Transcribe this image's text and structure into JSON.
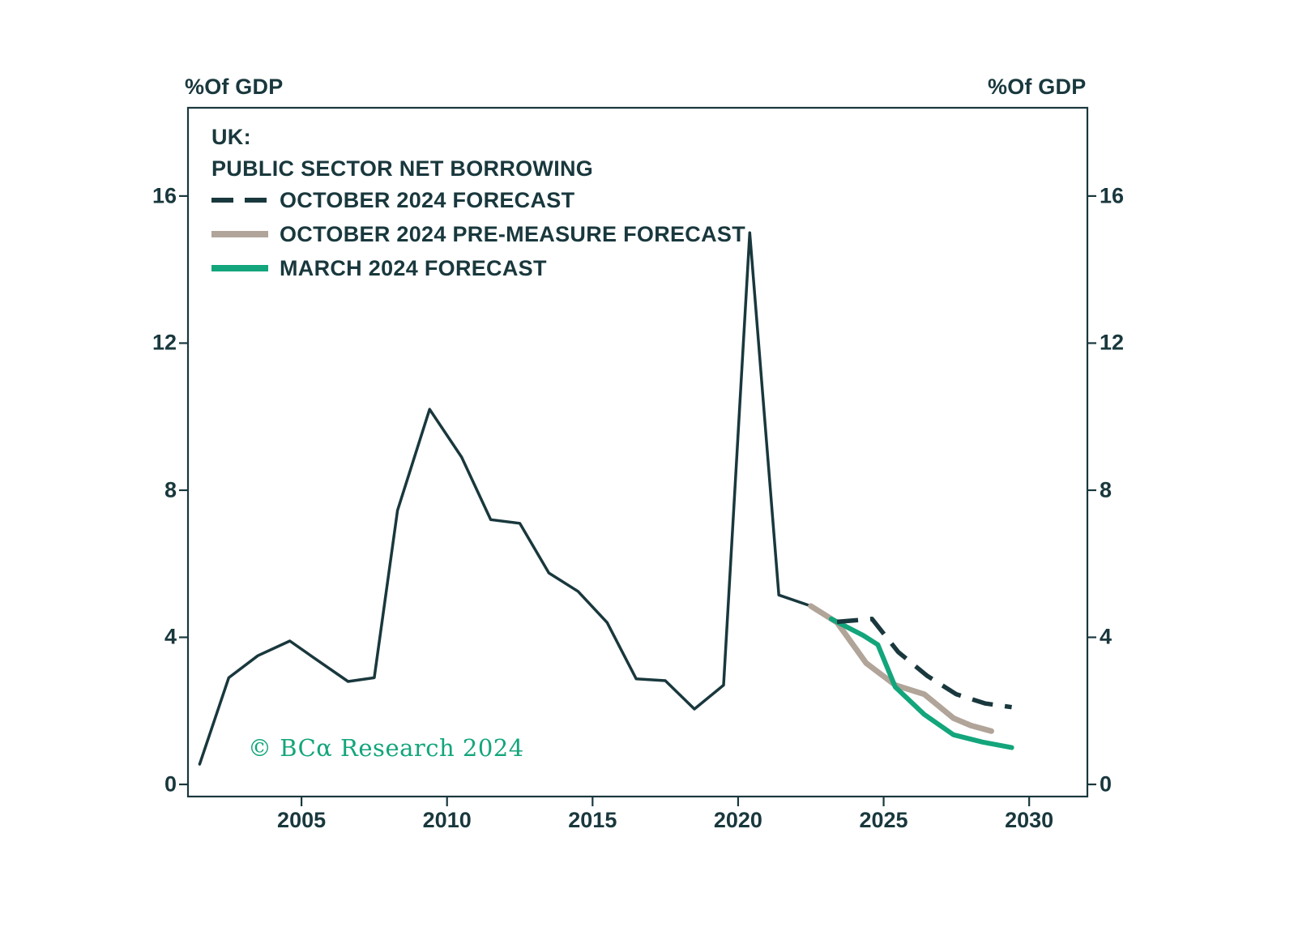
{
  "colors": {
    "ink": "#19383d",
    "green": "#13a57b",
    "tan": "#b1a499",
    "background": "#ffffff"
  },
  "chart_data": {
    "type": "line",
    "title_lines": [
      "UK:",
      "PUBLIC SECTOR NET BORROWING"
    ],
    "y_unit_left": "%Of GDP",
    "y_unit_right": "%Of GDP",
    "x_ticks": [
      2005,
      2010,
      2015,
      2020,
      2025,
      2030
    ],
    "y_ticks": [
      0,
      4,
      8,
      12,
      16
    ],
    "x_range": [
      2001.1,
      2032.0
    ],
    "y_range": [
      -0.33,
      18.4
    ],
    "grid": false,
    "legend_position": "top-left-inside",
    "series": [
      {
        "name": "PUBLIC SECTOR NET BORROWING (HISTORICAL)",
        "color": "#19383d",
        "style": "solid",
        "width": 3.5,
        "points": [
          [
            2001.5,
            0.55
          ],
          [
            2002.5,
            2.9
          ],
          [
            2003.5,
            3.5
          ],
          [
            2004.6,
            3.9
          ],
          [
            2005.5,
            3.4
          ],
          [
            2006.6,
            2.8
          ],
          [
            2007.5,
            2.9
          ],
          [
            2008.3,
            7.45
          ],
          [
            2009.4,
            10.2
          ],
          [
            2010.5,
            8.9
          ],
          [
            2011.5,
            7.2
          ],
          [
            2012.5,
            7.1
          ],
          [
            2013.5,
            5.75
          ],
          [
            2014.5,
            5.25
          ],
          [
            2015.5,
            4.4
          ],
          [
            2016.5,
            2.87
          ],
          [
            2017.5,
            2.82
          ],
          [
            2018.5,
            2.05
          ],
          [
            2019.5,
            2.7
          ],
          [
            2020.4,
            15.0
          ],
          [
            2021.4,
            5.15
          ],
          [
            2022.5,
            4.85
          ]
        ]
      },
      {
        "name": "OCTOBER 2024 PRE-MEASURE FORECAST",
        "color": "#b1a499",
        "style": "solid",
        "width": 7,
        "points": [
          [
            2022.5,
            4.85
          ],
          [
            2023.4,
            4.4
          ],
          [
            2024.4,
            3.3
          ],
          [
            2025.4,
            2.7
          ],
          [
            2026.4,
            2.45
          ],
          [
            2027.4,
            1.8
          ],
          [
            2028.0,
            1.6
          ],
          [
            2028.7,
            1.45
          ]
        ]
      },
      {
        "name": "MARCH 2024 FORECAST",
        "color": "#13a57b",
        "style": "solid",
        "width": 6,
        "points": [
          [
            2023.2,
            4.5
          ],
          [
            2024.3,
            4.05
          ],
          [
            2024.8,
            3.8
          ],
          [
            2025.4,
            2.65
          ],
          [
            2026.4,
            1.9
          ],
          [
            2027.4,
            1.35
          ],
          [
            2028.4,
            1.15
          ],
          [
            2029.4,
            1.0
          ]
        ]
      },
      {
        "name": "OCTOBER 2024 FORECAST",
        "color": "#19383d",
        "style": "dashed",
        "width": 5.5,
        "points": [
          [
            2023.4,
            4.42
          ],
          [
            2024.6,
            4.5
          ],
          [
            2025.5,
            3.6
          ],
          [
            2026.5,
            2.95
          ],
          [
            2027.5,
            2.45
          ],
          [
            2028.5,
            2.2
          ],
          [
            2029.4,
            2.1
          ]
        ]
      }
    ],
    "legend": [
      {
        "label": "OCTOBER 2024 FORECAST",
        "color": "#19383d",
        "style": "dashed"
      },
      {
        "label": "OCTOBER 2024 PRE-MEASURE FORECAST",
        "color": "#b1a499",
        "style": "solid"
      },
      {
        "label": "MARCH 2024 FORECAST",
        "color": "#13a57b",
        "style": "solid"
      }
    ],
    "watermark": "© BCα Research 2024"
  }
}
